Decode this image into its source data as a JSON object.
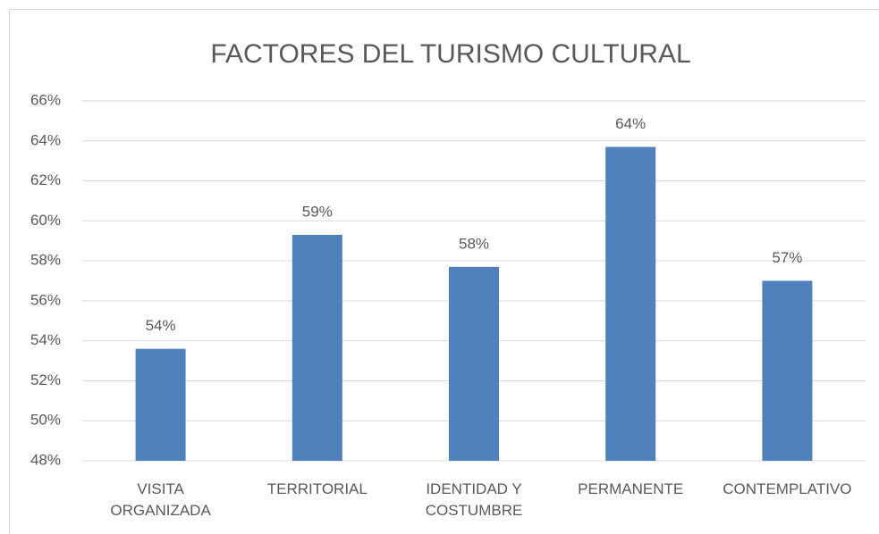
{
  "chart_data": {
    "type": "bar",
    "title": "FACTORES DEL TURISMO CULTURAL",
    "categories": [
      "VISITA ORGANIZADA",
      "TERRITORIAL",
      "IDENTIDAD Y COSTUMBRE",
      "PERMANENTE",
      "CONTEMPLATIVO"
    ],
    "values": [
      53.6,
      59.3,
      57.7,
      63.7,
      57.0
    ],
    "value_labels": [
      "54%",
      "59%",
      "58%",
      "64%",
      "57%"
    ],
    "color": "#4f81bd",
    "ylim": [
      48,
      66
    ],
    "yticks": [
      {
        "value": 48,
        "label": "48%"
      },
      {
        "value": 50,
        "label": "50%"
      },
      {
        "value": 52,
        "label": "52%"
      },
      {
        "value": 54,
        "label": "54%"
      },
      {
        "value": 56,
        "label": "56%"
      },
      {
        "value": 58,
        "label": "58%"
      },
      {
        "value": 60,
        "label": "60%"
      },
      {
        "value": 62,
        "label": "62%"
      },
      {
        "value": 64,
        "label": "64%"
      },
      {
        "value": 66,
        "label": "66%"
      }
    ],
    "grid": true
  }
}
